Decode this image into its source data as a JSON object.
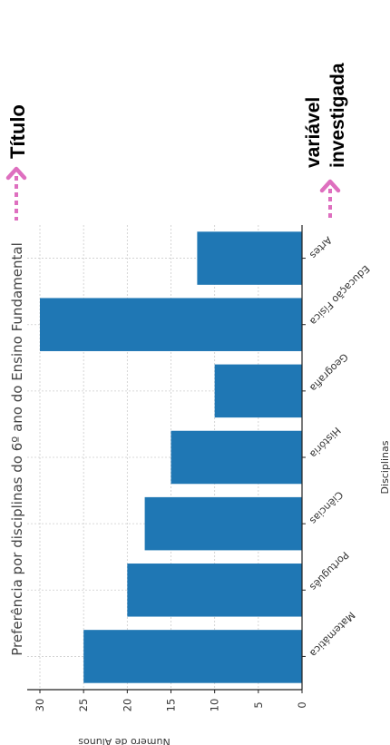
{
  "annotations": {
    "titulo": "Título",
    "variavel_line1": "variável",
    "variavel_line2": "investigada",
    "arrow_color": "#de6fbf"
  },
  "chart_data": {
    "type": "bar",
    "orientation": "horizontal-rotated",
    "title": "Preferência por disciplinas do 6º ano do Ensino Fundamental",
    "xlabel": "Disciplinas",
    "ylabel": "Número de Alunos",
    "categories": [
      "Matemática",
      "Português",
      "Ciências",
      "História",
      "Geografia",
      "Educação Física",
      "Artes"
    ],
    "values": [
      25,
      20,
      18,
      15,
      10,
      30,
      12
    ],
    "ylim": [
      0,
      30
    ],
    "yticks": [
      0,
      5,
      10,
      15,
      20,
      25,
      30
    ],
    "grid": true,
    "bar_color": "#1f77b4"
  }
}
